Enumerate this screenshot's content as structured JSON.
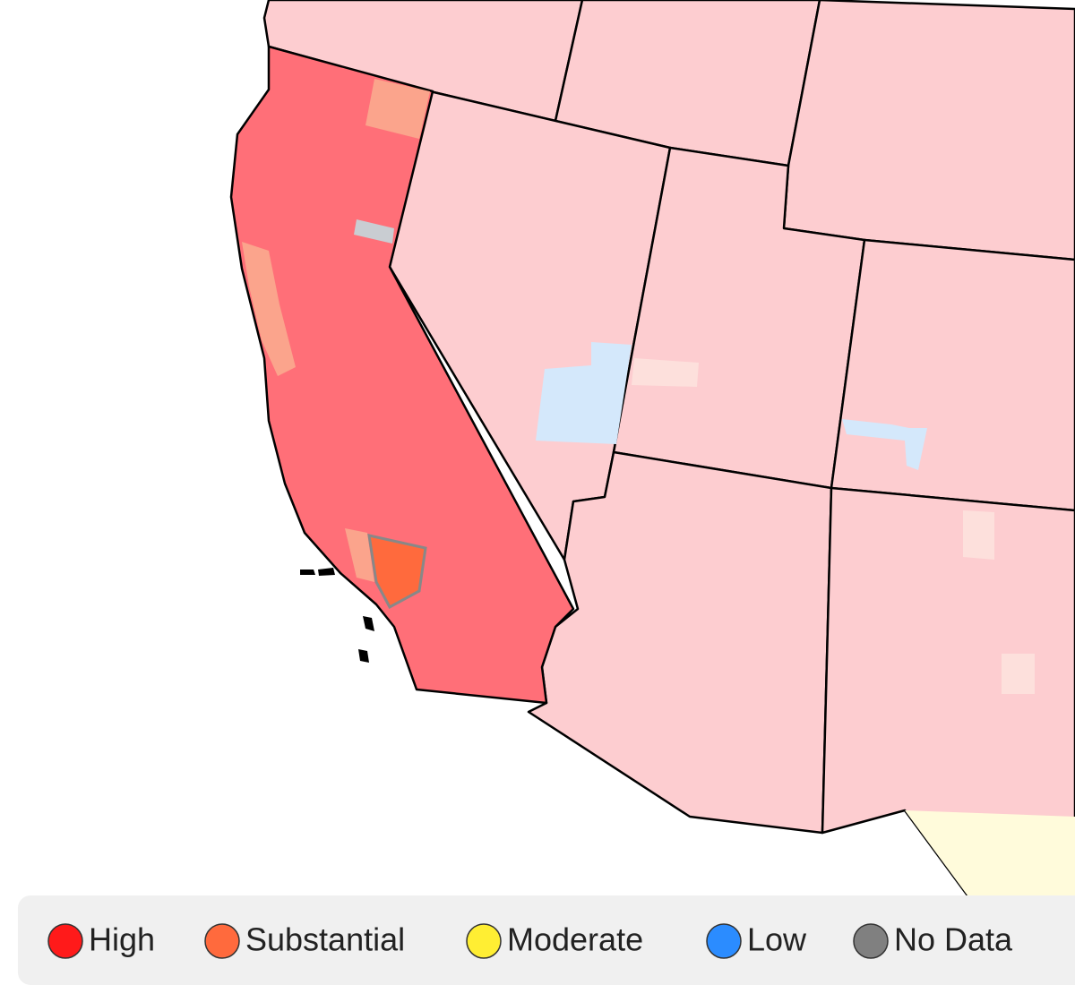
{
  "legend": {
    "items": [
      {
        "label": "High",
        "color": "#ff1a1a"
      },
      {
        "label": "Substantial",
        "color": "#ff6a3d"
      },
      {
        "label": "Moderate",
        "color": "#ffee33"
      },
      {
        "label": "Low",
        "color": "#2b8cff"
      },
      {
        "label": "No Data",
        "color": "#808080"
      }
    ]
  }
}
